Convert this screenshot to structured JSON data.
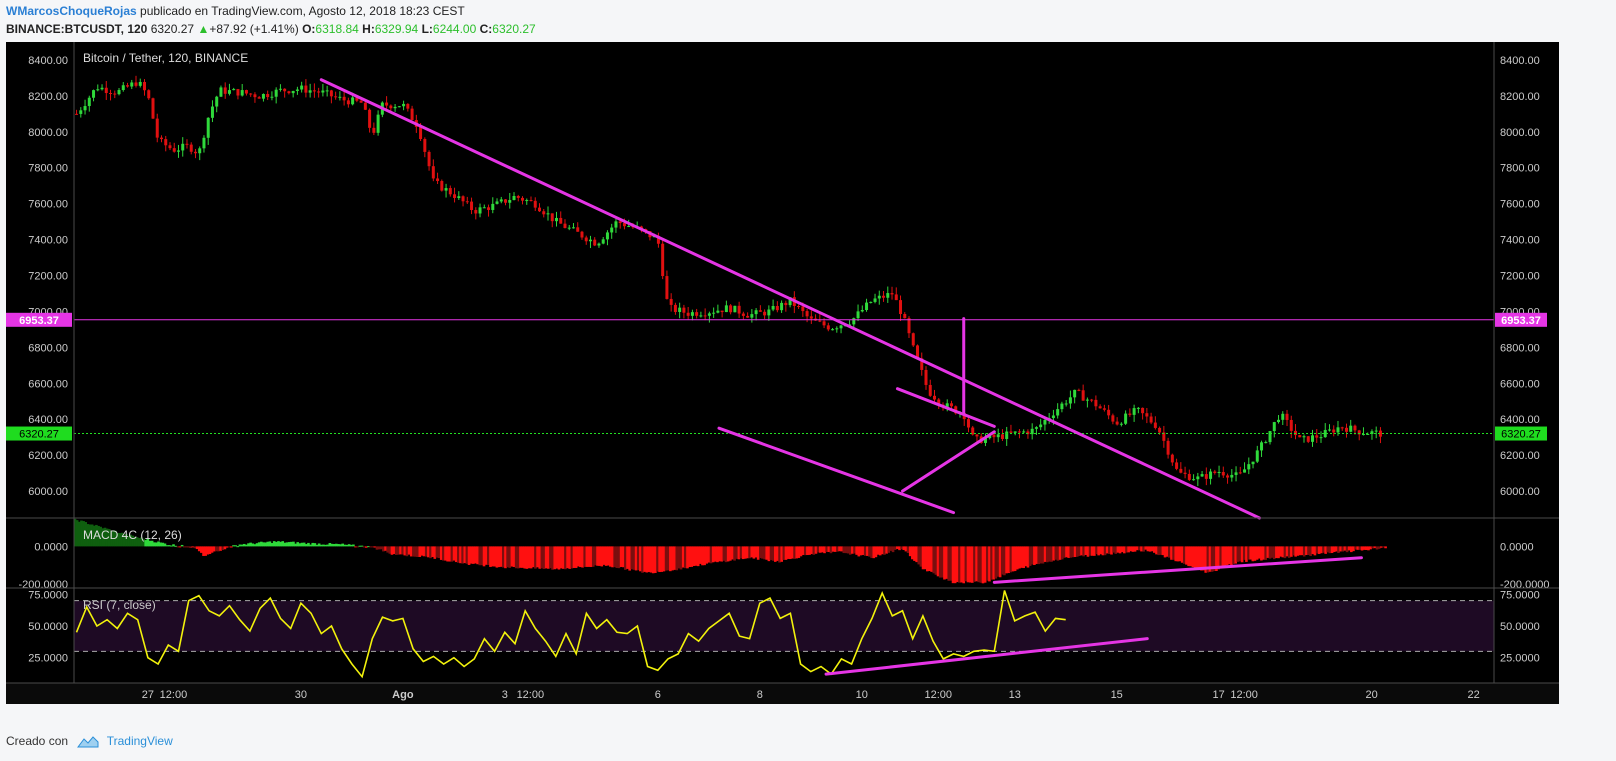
{
  "header": {
    "author": "WMarcosChoqueRojas",
    "published_text": "publicado en TradingView.com, Agosto 12, 2018 18:23 CEST",
    "symbol": "BINANCE:BTCUSDT, 120",
    "last_price": "6320.27",
    "change_arrow": "▲",
    "change": "+87.92 (+1.41%)",
    "o_label": "O:",
    "o_value": "6318.84",
    "h_label": "H:",
    "h_value": "6329.94",
    "l_label": "L:",
    "l_value": "6244.00",
    "c_label": "C:",
    "c_value": "6320.27"
  },
  "footer": {
    "created_with": "Creado con",
    "brand": "TradingView"
  },
  "colors": {
    "background": "#000000",
    "up_candle": "#2fd93b",
    "down_candle": "#e01010",
    "trendline": "#e535e5",
    "rsi_line": "#f2f20c",
    "price_line": "#22e022",
    "level_line": "#e535e5"
  },
  "chart_data": [
    {
      "type": "candlestick",
      "title": "Bitcoin / Tether, 120, BINANCE",
      "ylim": [
        5850,
        8500
      ],
      "y_ticks": [
        "8400.00",
        "8200.00",
        "8000.00",
        "7800.00",
        "7600.00",
        "7400.00",
        "7200.00",
        "7000.00",
        "6800.00",
        "6600.00",
        "6400.00",
        "6200.00",
        "6000.00"
      ],
      "y_tick_values": [
        8400,
        8200,
        8000,
        7800,
        7600,
        7400,
        7200,
        7000,
        6800,
        6600,
        6400,
        6200,
        6000
      ],
      "x_ticks": [
        "27",
        "12:00",
        "30",
        "Ago",
        "3",
        "12:00",
        "6",
        "8",
        "10",
        "12:00",
        "13",
        "15",
        "17",
        "12:00",
        "20",
        "22"
      ],
      "x_tick_days": [
        27,
        27.5,
        30,
        32,
        34,
        34.5,
        37,
        39,
        41,
        42.5,
        44,
        46,
        48,
        48.5,
        51,
        53
      ],
      "x_range_days": [
        25.55,
        53.4
      ],
      "current_price": 6320.27,
      "current_price_label": "6320.27",
      "level": 6953.37,
      "level_label": "6953.37",
      "trendlines": [
        {
          "name": "main-resistance",
          "points": [
            [
              30.4,
              8290
            ],
            [
              48.8,
              5850
            ]
          ]
        },
        {
          "name": "lower-channel",
          "points": [
            [
              38.2,
              6350
            ],
            [
              42.8,
              5880
            ]
          ]
        },
        {
          "name": "triangle-upper",
          "points": [
            [
              41.7,
              6570
            ],
            [
              43.6,
              6360
            ]
          ]
        },
        {
          "name": "triangle-lower",
          "points": [
            [
              41.8,
              6000
            ],
            [
              43.6,
              6330
            ]
          ]
        },
        {
          "name": "projection",
          "points": [
            [
              43.0,
              6960
            ],
            [
              43.0,
              6430
            ]
          ]
        }
      ],
      "path": [
        [
          25.6,
          8100
        ],
        [
          26.0,
          8250
        ],
        [
          26.4,
          8220
        ],
        [
          26.8,
          8280
        ],
        [
          27.0,
          8200
        ],
        [
          27.2,
          7950
        ],
        [
          27.5,
          7900
        ],
        [
          27.8,
          7920
        ],
        [
          28.0,
          7880
        ],
        [
          28.2,
          8100
        ],
        [
          28.4,
          8230
        ],
        [
          28.8,
          8220
        ],
        [
          29.2,
          8200
        ],
        [
          29.6,
          8230
        ],
        [
          30.0,
          8240
        ],
        [
          30.4,
          8220
        ],
        [
          30.8,
          8180
        ],
        [
          31.2,
          8160
        ],
        [
          31.4,
          7980
        ],
        [
          31.6,
          8150
        ],
        [
          32.0,
          8150
        ],
        [
          32.3,
          8030
        ],
        [
          32.6,
          7720
        ],
        [
          33.0,
          7650
        ],
        [
          33.4,
          7560
        ],
        [
          33.8,
          7590
        ],
        [
          34.2,
          7640
        ],
        [
          34.6,
          7600
        ],
        [
          35.0,
          7500
        ],
        [
          35.4,
          7440
        ],
        [
          35.8,
          7380
        ],
        [
          36.2,
          7500
        ],
        [
          36.6,
          7460
        ],
        [
          37.0,
          7400
        ],
        [
          37.2,
          7020
        ],
        [
          37.6,
          6990
        ],
        [
          38.0,
          7000
        ],
        [
          38.4,
          7020
        ],
        [
          38.8,
          6980
        ],
        [
          39.2,
          7000
        ],
        [
          39.6,
          7060
        ],
        [
          40.0,
          6950
        ],
        [
          40.4,
          6910
        ],
        [
          40.8,
          6950
        ],
        [
          41.2,
          7060
        ],
        [
          41.6,
          7100
        ],
        [
          41.8,
          6980
        ],
        [
          42.0,
          6800
        ],
        [
          42.3,
          6560
        ],
        [
          42.6,
          6480
        ],
        [
          43.0,
          6430
        ],
        [
          43.2,
          6280
        ],
        [
          43.6,
          6300
        ],
        [
          44.0,
          6320
        ],
        [
          44.4,
          6340
        ],
        [
          44.8,
          6450
        ],
        [
          45.2,
          6550
        ],
        [
          45.6,
          6480
        ],
        [
          46.0,
          6380
        ],
        [
          46.4,
          6450
        ],
        [
          46.8,
          6360
        ],
        [
          47.2,
          6100
        ],
        [
          47.6,
          6070
        ],
        [
          48.0,
          6110
        ],
        [
          48.4,
          6080
        ],
        [
          48.8,
          6230
        ],
        [
          49.2,
          6430
        ],
        [
          49.6,
          6280
        ],
        [
          50.0,
          6310
        ],
        [
          50.4,
          6360
        ],
        [
          50.8,
          6330
        ],
        [
          51.2,
          6320
        ]
      ]
    },
    {
      "type": "histogram",
      "title": "MACD 4C (12, 26)",
      "y_ticks": [
        "0.0000",
        "-200.0000"
      ],
      "y_tick_values": [
        0,
        -200
      ],
      "ylim": [
        -220,
        150
      ],
      "envelope": [
        [
          25.6,
          140
        ],
        [
          26.6,
          60
        ],
        [
          27.4,
          10
        ],
        [
          27.9,
          -5
        ],
        [
          28.1,
          -50
        ],
        [
          28.4,
          -20
        ],
        [
          28.8,
          10
        ],
        [
          29.5,
          25
        ],
        [
          30.2,
          15
        ],
        [
          30.8,
          10
        ],
        [
          31.4,
          -5
        ],
        [
          31.8,
          -40
        ],
        [
          32.6,
          -60
        ],
        [
          33.2,
          -90
        ],
        [
          34.0,
          -110
        ],
        [
          35.0,
          -120
        ],
        [
          36.0,
          -100
        ],
        [
          36.8,
          -140
        ],
        [
          37.4,
          -120
        ],
        [
          38.0,
          -90
        ],
        [
          38.8,
          -60
        ],
        [
          39.4,
          -80
        ],
        [
          40.0,
          -40
        ],
        [
          40.6,
          -30
        ],
        [
          41.2,
          -60
        ],
        [
          41.8,
          -10
        ],
        [
          42.2,
          -120
        ],
        [
          42.8,
          -190
        ],
        [
          43.4,
          -190
        ],
        [
          44.2,
          -110
        ],
        [
          45.0,
          -60
        ],
        [
          45.8,
          -40
        ],
        [
          46.6,
          -20
        ],
        [
          47.2,
          -80
        ],
        [
          47.8,
          -140
        ],
        [
          48.4,
          -80
        ],
        [
          49.2,
          -60
        ],
        [
          50.0,
          -40
        ],
        [
          50.8,
          -20
        ],
        [
          51.3,
          -10
        ]
      ],
      "trendlines": [
        {
          "name": "macd-divergence",
          "points": [
            [
              43.6,
              -190
            ],
            [
              50.8,
              -60
            ]
          ]
        }
      ]
    },
    {
      "type": "line",
      "title": "RSI (7, close)",
      "y_ticks": [
        "75.0000",
        "50.0000",
        "25.0000"
      ],
      "y_tick_values": [
        75,
        50,
        25
      ],
      "ylim": [
        5,
        80
      ],
      "band": [
        30,
        70
      ],
      "values": [
        [
          25.6,
          45
        ],
        [
          25.8,
          65
        ],
        [
          26.0,
          50
        ],
        [
          26.2,
          55
        ],
        [
          26.4,
          48
        ],
        [
          26.6,
          60
        ],
        [
          26.8,
          55
        ],
        [
          27.0,
          25
        ],
        [
          27.2,
          20
        ],
        [
          27.4,
          35
        ],
        [
          27.6,
          30
        ],
        [
          27.8,
          70
        ],
        [
          28.0,
          74
        ],
        [
          28.2,
          62
        ],
        [
          28.4,
          58
        ],
        [
          28.6,
          66
        ],
        [
          28.8,
          55
        ],
        [
          29.0,
          46
        ],
        [
          29.2,
          64
        ],
        [
          29.4,
          72
        ],
        [
          29.6,
          56
        ],
        [
          29.8,
          48
        ],
        [
          30.0,
          68
        ],
        [
          30.2,
          60
        ],
        [
          30.4,
          44
        ],
        [
          30.6,
          50
        ],
        [
          30.8,
          32
        ],
        [
          31.0,
          20
        ],
        [
          31.2,
          10
        ],
        [
          31.4,
          40
        ],
        [
          31.6,
          57
        ],
        [
          31.8,
          54
        ],
        [
          32.0,
          56
        ],
        [
          32.2,
          32
        ],
        [
          32.4,
          22
        ],
        [
          32.6,
          26
        ],
        [
          32.8,
          20
        ],
        [
          33.0,
          25
        ],
        [
          33.2,
          18
        ],
        [
          33.4,
          24
        ],
        [
          33.6,
          40
        ],
        [
          33.8,
          30
        ],
        [
          34.0,
          45
        ],
        [
          34.2,
          36
        ],
        [
          34.4,
          62
        ],
        [
          34.6,
          48
        ],
        [
          34.8,
          38
        ],
        [
          35.0,
          26
        ],
        [
          35.2,
          44
        ],
        [
          35.4,
          28
        ],
        [
          35.6,
          60
        ],
        [
          35.8,
          48
        ],
        [
          36.0,
          55
        ],
        [
          36.2,
          45
        ],
        [
          36.4,
          44
        ],
        [
          36.6,
          50
        ],
        [
          36.8,
          18
        ],
        [
          37.0,
          15
        ],
        [
          37.2,
          24
        ],
        [
          37.4,
          28
        ],
        [
          37.6,
          44
        ],
        [
          37.8,
          38
        ],
        [
          38.0,
          48
        ],
        [
          38.2,
          54
        ],
        [
          38.4,
          60
        ],
        [
          38.6,
          42
        ],
        [
          38.8,
          40
        ],
        [
          39.0,
          68
        ],
        [
          39.2,
          72
        ],
        [
          39.4,
          56
        ],
        [
          39.6,
          60
        ],
        [
          39.8,
          20
        ],
        [
          40.0,
          14
        ],
        [
          40.2,
          18
        ],
        [
          40.4,
          12
        ],
        [
          40.6,
          24
        ],
        [
          40.8,
          20
        ],
        [
          41.0,
          40
        ],
        [
          41.2,
          56
        ],
        [
          41.4,
          76
        ],
        [
          41.6,
          58
        ],
        [
          41.8,
          62
        ],
        [
          42.0,
          40
        ],
        [
          42.2,
          58
        ],
        [
          42.4,
          38
        ],
        [
          42.6,
          24
        ],
        [
          42.8,
          28
        ],
        [
          43.0,
          26
        ],
        [
          43.2,
          30
        ],
        [
          43.4,
          31
        ],
        [
          43.6,
          30
        ],
        [
          43.8,
          78
        ],
        [
          44.0,
          54
        ],
        [
          44.2,
          58
        ],
        [
          44.4,
          61
        ],
        [
          44.6,
          46
        ],
        [
          44.8,
          56
        ],
        [
          45.0,
          55
        ]
      ],
      "trendlines": [
        {
          "name": "rsi-divergence",
          "points": [
            [
              40.3,
              12
            ],
            [
              46.6,
              40
            ]
          ]
        }
      ]
    }
  ]
}
